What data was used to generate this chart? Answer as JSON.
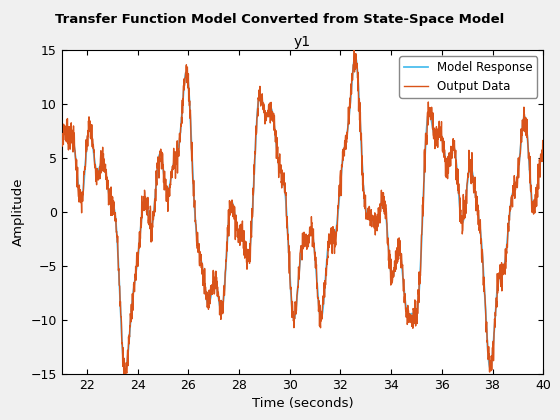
{
  "t_start": 21,
  "t_end": 40,
  "n_points": 1900,
  "title": "Transfer Function Model Converted from State-Space Model",
  "subtitle": "y1",
  "xlabel": "Time (seconds)",
  "ylabel": "Amplitude",
  "ylim": [
    -15,
    15
  ],
  "xlim": [
    21,
    40
  ],
  "xticks": [
    22,
    24,
    26,
    28,
    30,
    32,
    34,
    36,
    38,
    40
  ],
  "yticks": [
    -15,
    -10,
    -5,
    0,
    5,
    10,
    15
  ],
  "model_color": "#4DBEEE",
  "output_color": "#D95319",
  "model_label": "Model Response",
  "output_label": "Output Data",
  "model_lw": 1.3,
  "output_lw": 1.0,
  "legend_loc": "upper right",
  "bg_color": "#F0F0F0",
  "axes_bg": "#FFFFFF",
  "signal_components": [
    {
      "amp": 7.5,
      "freq": 0.28,
      "phase": 0.0
    },
    {
      "amp": 4.0,
      "freq": 0.62,
      "phase": 1.1
    },
    {
      "amp": 2.5,
      "freq": 1.05,
      "phase": 0.5
    },
    {
      "amp": 1.5,
      "freq": 1.8,
      "phase": 2.0
    }
  ],
  "noise_std": 0.65,
  "noise_seed": 7
}
